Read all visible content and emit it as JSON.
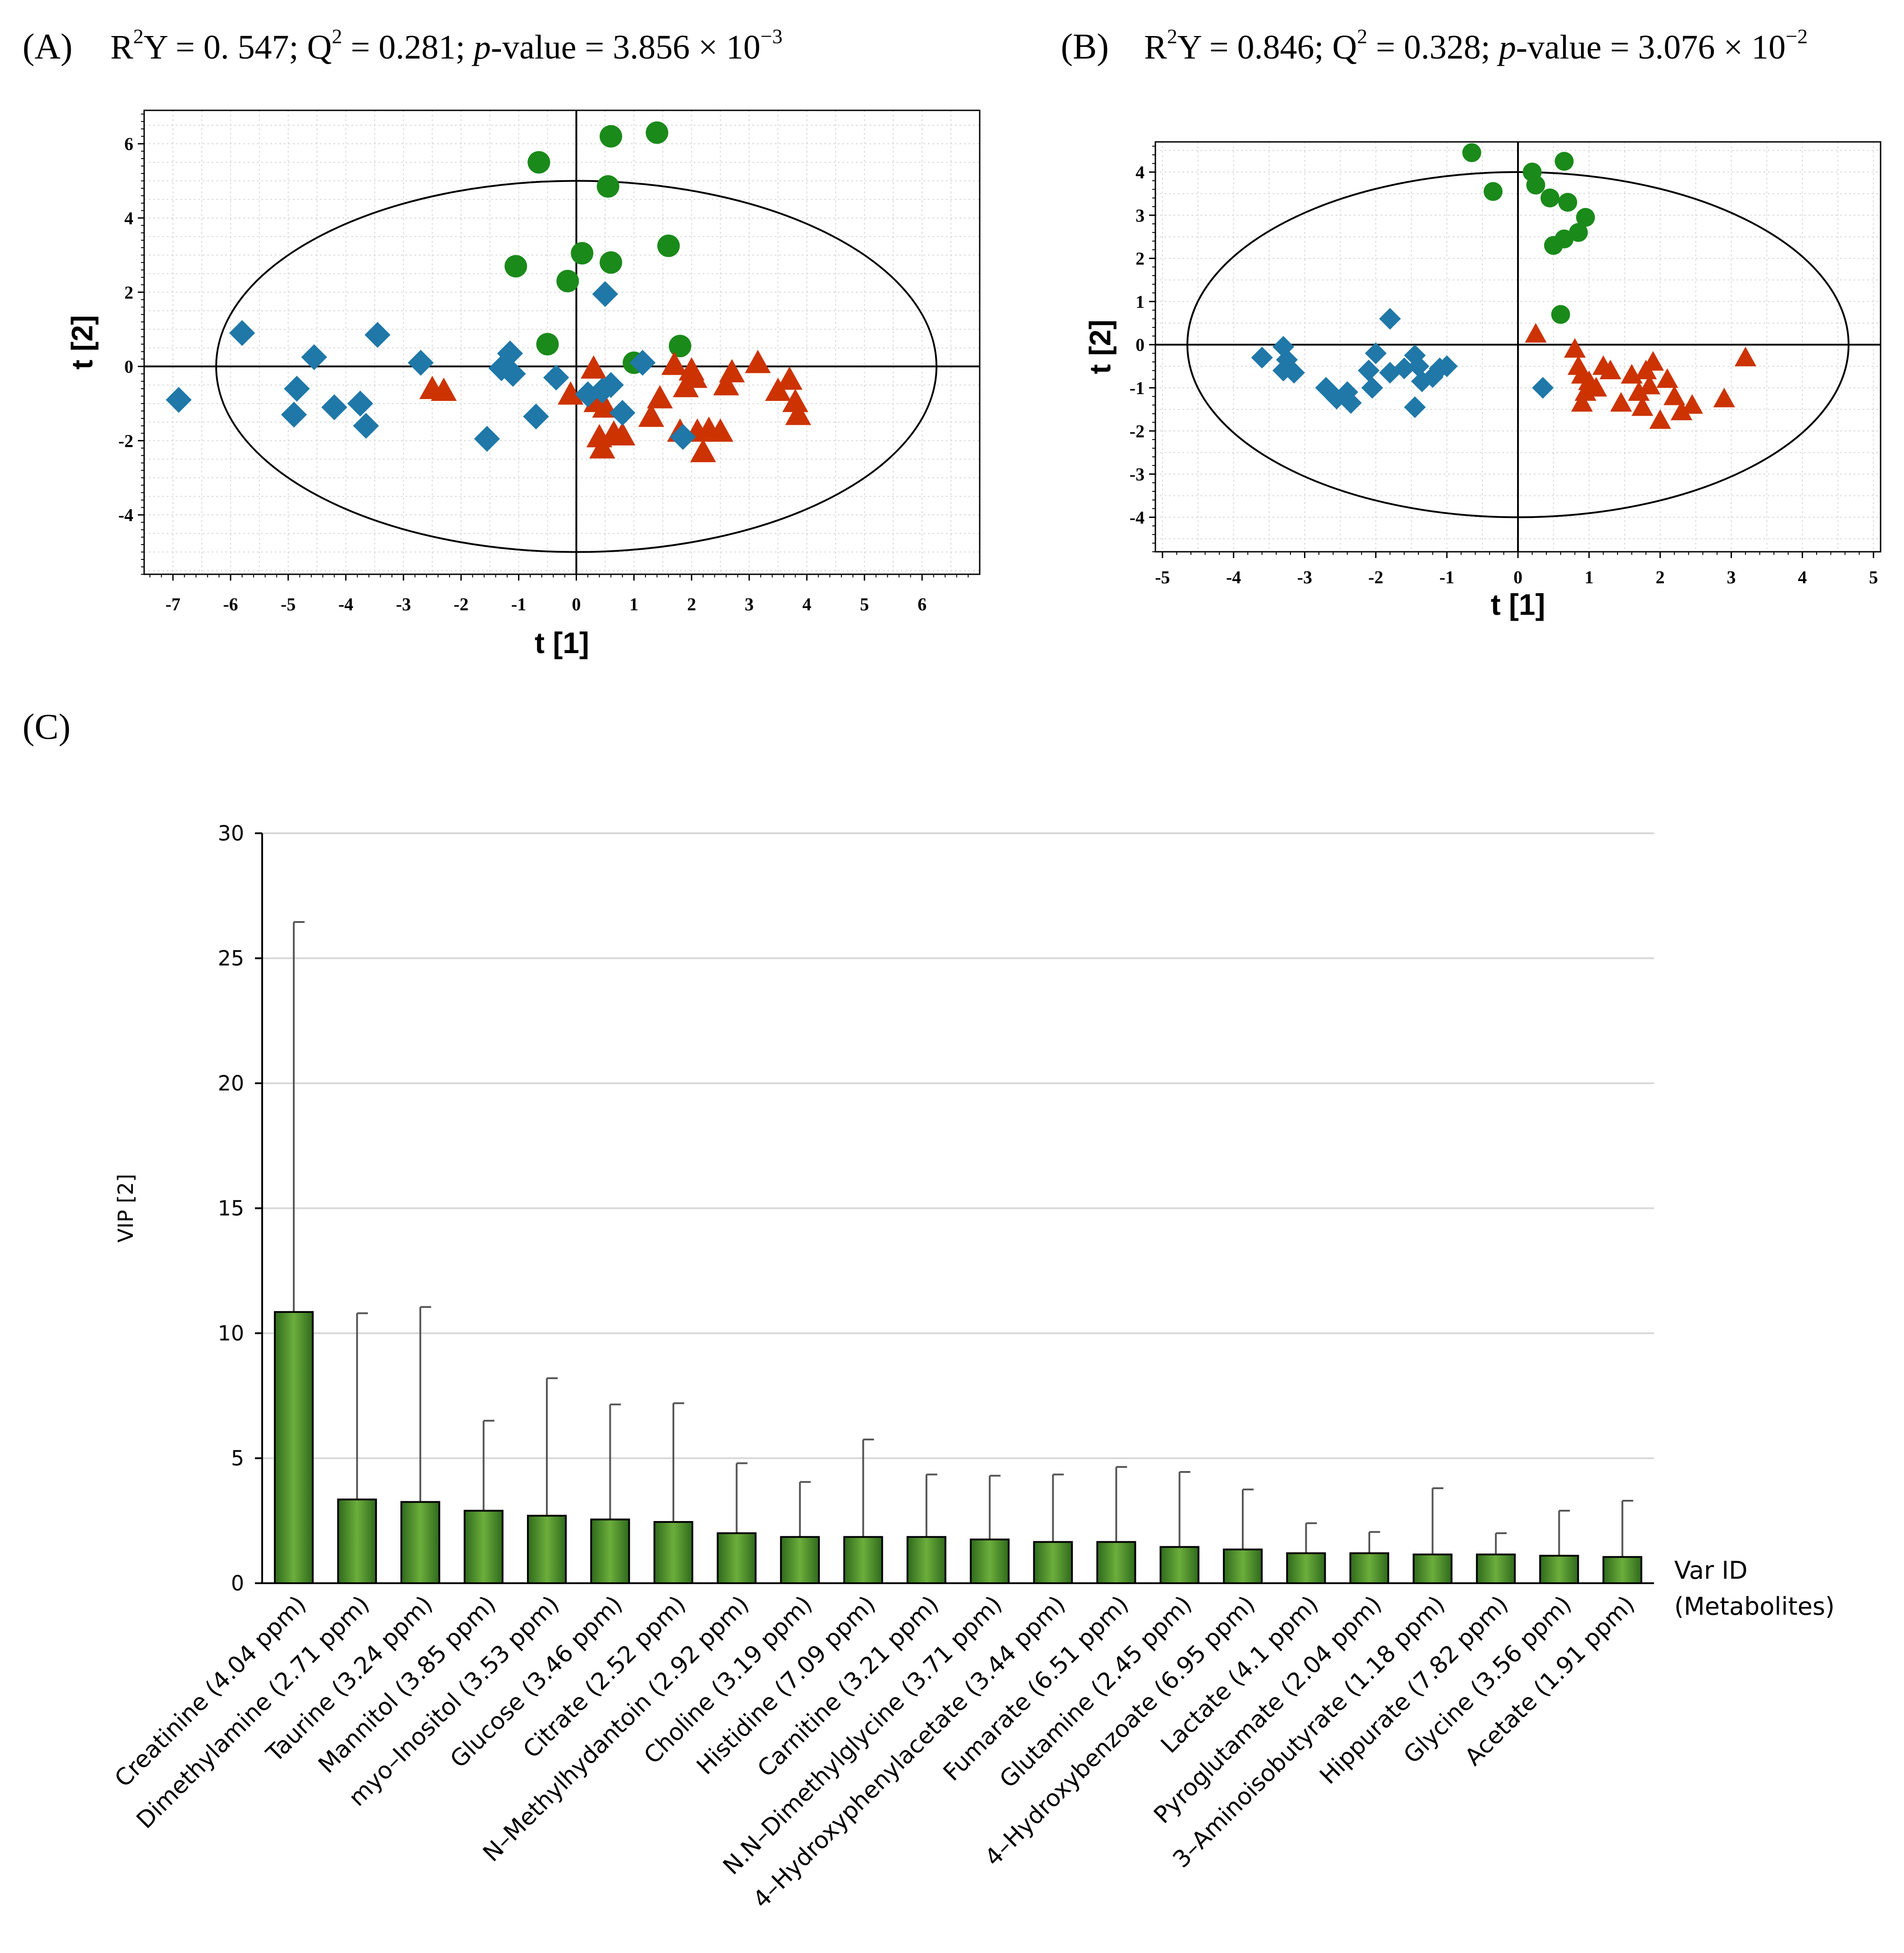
{
  "colors": {
    "circles": "#1a8a1a",
    "triangles": "#cc3300",
    "diamonds": "#1f78a8",
    "bar_mid": "#6cae3c",
    "bar_edge": "#2f6a1c",
    "grid": "#d8d8d8",
    "axis": "#000000"
  },
  "chart_data": [
    {
      "type": "scatter",
      "panel": "A",
      "panel_label": "(A)",
      "stats": {
        "r2y": "0. 547",
        "q2": "0.281",
        "p_value_base": "3.856",
        "p_value_exp": "−3"
      },
      "xlabel": "t [1]",
      "ylabel": "t [2]",
      "xlim": [
        -7.5,
        7
      ],
      "ylim": [
        -5.6,
        6.9
      ],
      "xticks": [
        -7,
        -6,
        -5,
        -4,
        -3,
        -2,
        -1,
        0,
        1,
        2,
        3,
        4,
        5,
        6
      ],
      "yticks": [
        -4,
        -2,
        0,
        2,
        4,
        6
      ],
      "ellipse": {
        "cx": 0,
        "cy": 0,
        "rx": 6.25,
        "ry": 5.0
      },
      "series": [
        {
          "name": "circles",
          "marker": "circle",
          "points": [
            [
              -0.65,
              5.5
            ],
            [
              0.6,
              6.2
            ],
            [
              1.4,
              6.3
            ],
            [
              0.55,
              4.85
            ],
            [
              1.6,
              3.25
            ],
            [
              -1.05,
              2.7
            ],
            [
              0.1,
              3.05
            ],
            [
              0.6,
              2.8
            ],
            [
              -0.15,
              2.3
            ],
            [
              -0.5,
              0.6
            ],
            [
              1.8,
              0.55
            ],
            [
              1.0,
              0.1
            ]
          ]
        },
        {
          "name": "triangles",
          "marker": "triangle",
          "points": [
            [
              -2.5,
              -0.6
            ],
            [
              -2.3,
              -0.65
            ],
            [
              0.3,
              -0.05
            ],
            [
              -0.1,
              -0.75
            ],
            [
              0.35,
              -0.95
            ],
            [
              0.5,
              -1.1
            ],
            [
              0.4,
              -1.9
            ],
            [
              0.45,
              -2.2
            ],
            [
              0.65,
              -1.8
            ],
            [
              0.8,
              -1.85
            ],
            [
              1.3,
              -1.35
            ],
            [
              1.45,
              -0.85
            ],
            [
              1.7,
              0.05
            ],
            [
              1.8,
              -1.75
            ],
            [
              1.9,
              -0.55
            ],
            [
              2.0,
              -0.1
            ],
            [
              2.05,
              -0.3
            ],
            [
              2.1,
              -1.75
            ],
            [
              2.2,
              -2.3
            ],
            [
              2.3,
              -1.7
            ],
            [
              2.5,
              -1.75
            ],
            [
              2.6,
              -0.5
            ],
            [
              2.7,
              -0.15
            ],
            [
              3.15,
              0.1
            ],
            [
              3.5,
              -0.65
            ],
            [
              3.7,
              -0.35
            ],
            [
              3.8,
              -0.95
            ],
            [
              3.85,
              -1.3
            ]
          ]
        },
        {
          "name": "diamonds",
          "marker": "diamond",
          "points": [
            [
              -6.9,
              -0.9
            ],
            [
              -5.8,
              0.9
            ],
            [
              -4.85,
              -0.6
            ],
            [
              -4.9,
              -1.3
            ],
            [
              -4.55,
              0.25
            ],
            [
              -4.2,
              -1.1
            ],
            [
              -3.75,
              -1.0
            ],
            [
              -3.65,
              -1.6
            ],
            [
              -3.45,
              0.85
            ],
            [
              -2.7,
              0.1
            ],
            [
              -1.55,
              -1.95
            ],
            [
              -1.3,
              -0.05
            ],
            [
              -1.15,
              0.35
            ],
            [
              -1.1,
              -0.2
            ],
            [
              -0.7,
              -1.35
            ],
            [
              -0.35,
              -0.3
            ],
            [
              0.2,
              -0.75
            ],
            [
              0.45,
              -0.65
            ],
            [
              0.5,
              1.95
            ],
            [
              0.6,
              -0.5
            ],
            [
              0.8,
              -1.25
            ],
            [
              1.15,
              0.1
            ],
            [
              1.85,
              -1.9
            ]
          ]
        }
      ]
    },
    {
      "type": "scatter",
      "panel": "B",
      "panel_label": "(B)",
      "stats": {
        "r2y": "0.846",
        "q2": "0.328",
        "p_value_base": "3.076",
        "p_value_exp": "−2"
      },
      "xlabel": "t [1]",
      "ylabel": "t [2]",
      "xlim": [
        -5.1,
        5.1
      ],
      "ylim": [
        -4.8,
        4.7
      ],
      "xticks": [
        -5,
        -4,
        -3,
        -2,
        -1,
        0,
        1,
        2,
        3,
        4,
        5
      ],
      "yticks": [
        -4,
        -3,
        -2,
        -1,
        0,
        1,
        2,
        3,
        4
      ],
      "ellipse": {
        "cx": 0,
        "cy": 0,
        "rx": 4.65,
        "ry": 4.0
      },
      "series": [
        {
          "name": "circles",
          "marker": "circle",
          "points": [
            [
              -0.65,
              4.45
            ],
            [
              -0.35,
              3.55
            ],
            [
              0.2,
              4.0
            ],
            [
              0.25,
              3.7
            ],
            [
              0.45,
              3.4
            ],
            [
              0.65,
              4.25
            ],
            [
              0.7,
              3.3
            ],
            [
              0.95,
              2.95
            ],
            [
              0.5,
              2.3
            ],
            [
              0.65,
              2.45
            ],
            [
              0.85,
              2.6
            ],
            [
              0.6,
              0.7
            ]
          ]
        },
        {
          "name": "triangles",
          "marker": "triangle",
          "points": [
            [
              0.25,
              0.25
            ],
            [
              0.8,
              -0.1
            ],
            [
              0.85,
              -0.5
            ],
            [
              0.9,
              -0.7
            ],
            [
              0.95,
              -1.1
            ],
            [
              0.9,
              -1.35
            ],
            [
              1.0,
              -0.85
            ],
            [
              1.1,
              -1.0
            ],
            [
              1.2,
              -0.5
            ],
            [
              1.3,
              -0.6
            ],
            [
              1.45,
              -1.35
            ],
            [
              1.6,
              -0.7
            ],
            [
              1.7,
              -1.1
            ],
            [
              1.75,
              -1.45
            ],
            [
              1.8,
              -0.6
            ],
            [
              1.85,
              -0.95
            ],
            [
              1.9,
              -0.4
            ],
            [
              2.0,
              -1.75
            ],
            [
              2.1,
              -0.8
            ],
            [
              2.2,
              -1.2
            ],
            [
              2.3,
              -1.55
            ],
            [
              2.45,
              -1.4
            ],
            [
              2.9,
              -1.25
            ],
            [
              3.2,
              -0.3
            ]
          ]
        },
        {
          "name": "diamonds",
          "marker": "diamond",
          "points": [
            [
              -3.6,
              -0.3
            ],
            [
              -3.3,
              -0.05
            ],
            [
              -3.25,
              -0.35
            ],
            [
              -3.3,
              -0.6
            ],
            [
              -3.15,
              -0.65
            ],
            [
              -2.7,
              -1.0
            ],
            [
              -2.55,
              -1.25
            ],
            [
              -2.4,
              -1.1
            ],
            [
              -2.35,
              -1.35
            ],
            [
              -2.05,
              -1.0
            ],
            [
              -2.1,
              -0.6
            ],
            [
              -2.0,
              -0.2
            ],
            [
              -1.8,
              0.6
            ],
            [
              -1.8,
              -0.65
            ],
            [
              -1.6,
              -0.55
            ],
            [
              -1.45,
              -0.25
            ],
            [
              -1.4,
              -0.5
            ],
            [
              -1.35,
              -0.85
            ],
            [
              -1.45,
              -1.45
            ],
            [
              -1.2,
              -0.75
            ],
            [
              -1.1,
              -0.55
            ],
            [
              -1.0,
              -0.5
            ],
            [
              0.35,
              -1.0
            ]
          ]
        }
      ]
    },
    {
      "type": "bar",
      "panel": "C",
      "panel_label": "(C)",
      "ylabel": "VIP [2]",
      "xlabel_line1": "Var ID",
      "xlabel_line2": "(Metabolites)",
      "ylim": [
        0,
        30
      ],
      "yticks": [
        "0",
        "5",
        "10",
        "15",
        "20",
        "25",
        "30"
      ],
      "categories": [
        "Creatinine (4.04 ppm)",
        "Dimethylamine (2.71 ppm)",
        "Taurine (3.24 ppm)",
        "Mannitol (3.85 ppm)",
        "myo–Inositol (3.53 ppm)",
        "Glucose (3.46 ppm)",
        "Citrate (2.52 ppm)",
        "N–Methylhydantoin (2.92 ppm)",
        "Choline (3.19 ppm)",
        "Histidine (7.09 ppm)",
        "Carnitine (3.21 ppm)",
        "N.N–Dimethylglycine (3.71 ppm)",
        "4–Hydroxyphenylacetate (3.44 ppm)",
        "Fumarate (6.51 ppm)",
        "Glutamine (2.45 ppm)",
        "4–Hydroxybenzoate (6.95 ppm)",
        "Lactate (4.1 ppm)",
        "Pyroglutamate (2.04 ppm)",
        "3–Aminoisobutyrate (1.18 ppm)",
        "Hippurate (7.82 ppm)",
        "Glycine (3.56 ppm)",
        "Acetate (1.91 ppm)"
      ],
      "values": [
        10.85,
        3.35,
        3.25,
        2.9,
        2.7,
        2.55,
        2.45,
        2.0,
        1.85,
        1.85,
        1.85,
        1.75,
        1.65,
        1.65,
        1.45,
        1.35,
        1.2,
        1.2,
        1.15,
        1.15,
        1.1,
        1.05
      ],
      "error_upper": [
        26.45,
        10.8,
        11.05,
        6.5,
        8.2,
        7.15,
        7.2,
        4.8,
        4.05,
        5.75,
        4.35,
        4.3,
        4.35,
        4.65,
        4.45,
        3.75,
        2.4,
        2.05,
        3.8,
        2.0,
        2.9,
        3.3
      ]
    }
  ]
}
